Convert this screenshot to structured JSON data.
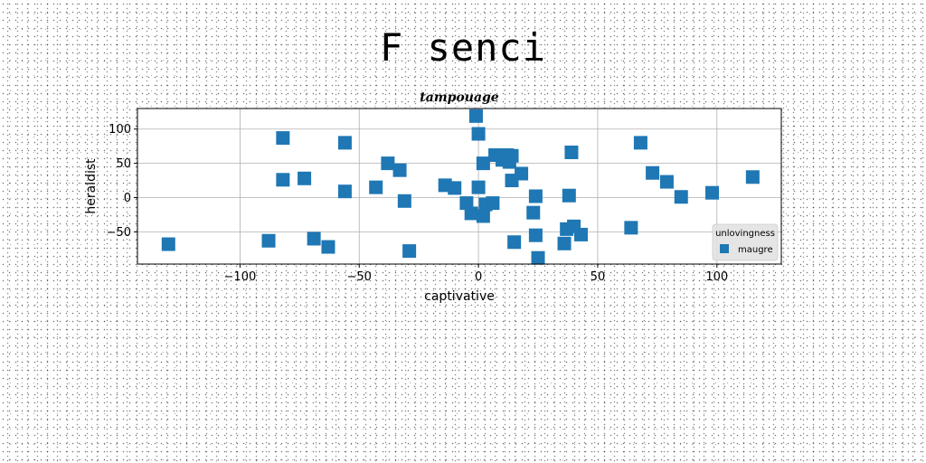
{
  "figure": {
    "suptitle": "F senci"
  },
  "chart_data": {
    "type": "scatter",
    "title": "tampouage",
    "xlabel": "captivative",
    "ylabel": "heraldist",
    "xlim": [
      -143,
      127
    ],
    "ylim": [
      -97,
      130
    ],
    "xticks": [
      -100,
      -50,
      0,
      50,
      100
    ],
    "yticks": [
      -50,
      0,
      50,
      100
    ],
    "xtick_labels": [
      "−100",
      "−50",
      "0",
      "50",
      "100"
    ],
    "ytick_labels": [
      "−50",
      "0",
      "50",
      "100"
    ],
    "grid": true,
    "legend": {
      "title": "unlovingness",
      "placement": "lower-right"
    },
    "marker": "square",
    "color": "#1f77b4",
    "series": [
      {
        "name": "maugre",
        "points": [
          [
            -130,
            -68
          ],
          [
            -88,
            -63
          ],
          [
            -82,
            87
          ],
          [
            -82,
            26
          ],
          [
            -73,
            28
          ],
          [
            -69,
            -60
          ],
          [
            -63,
            -72
          ],
          [
            -56,
            80
          ],
          [
            -56,
            9
          ],
          [
            -43,
            15
          ],
          [
            -38,
            50
          ],
          [
            -33,
            40
          ],
          [
            -31,
            -5
          ],
          [
            -29,
            -78
          ],
          [
            -14,
            18
          ],
          [
            -10,
            14
          ],
          [
            -5,
            -8
          ],
          [
            -3,
            -23
          ],
          [
            -1,
            119
          ],
          [
            0,
            15
          ],
          [
            0,
            93
          ],
          [
            2,
            -27
          ],
          [
            2,
            50
          ],
          [
            3,
            -10
          ],
          [
            6,
            -8
          ],
          [
            7,
            62
          ],
          [
            10,
            55
          ],
          [
            12,
            62
          ],
          [
            13,
            52
          ],
          [
            14,
            61
          ],
          [
            14,
            25
          ],
          [
            15,
            -65
          ],
          [
            18,
            35
          ],
          [
            23,
            -22
          ],
          [
            24,
            -55
          ],
          [
            24,
            2
          ],
          [
            25,
            -88
          ],
          [
            36,
            -67
          ],
          [
            37,
            -46
          ],
          [
            38,
            3
          ],
          [
            39,
            66
          ],
          [
            40,
            -42
          ],
          [
            43,
            -54
          ],
          [
            64,
            -44
          ],
          [
            68,
            80
          ],
          [
            73,
            36
          ],
          [
            79,
            23
          ],
          [
            85,
            1
          ],
          [
            98,
            7
          ],
          [
            115,
            30
          ]
        ]
      }
    ]
  }
}
